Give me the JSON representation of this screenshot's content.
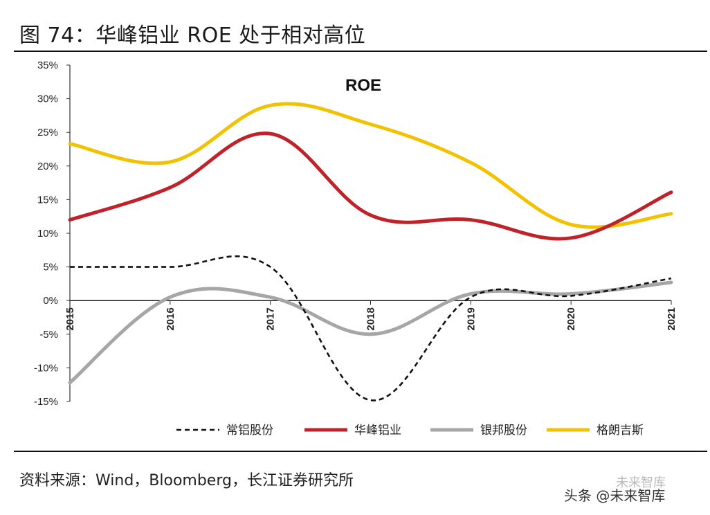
{
  "figure": {
    "title": "图 74：华峰铝业 ROE 处于相对高位",
    "source": "资料来源：Wind，Bloomberg，长江证券研究所",
    "watermark": "头条 @未来智库",
    "watermark_ghost": "未来智库"
  },
  "chart_data": {
    "type": "line",
    "title": "ROE",
    "xlabel": "",
    "ylabel": "",
    "categories": [
      "2015",
      "2016",
      "2017",
      "2018",
      "2019",
      "2020",
      "2021"
    ],
    "ylim": [
      -0.15,
      0.35
    ],
    "yticks": [
      {
        "value": 0.35,
        "label": "35%"
      },
      {
        "value": 0.3,
        "label": "30%"
      },
      {
        "value": 0.25,
        "label": "25%"
      },
      {
        "value": 0.2,
        "label": "20%"
      },
      {
        "value": 0.15,
        "label": "15%"
      },
      {
        "value": 0.1,
        "label": "10%"
      },
      {
        "value": 0.05,
        "label": "5%"
      },
      {
        "value": 0.0,
        "label": "0%"
      },
      {
        "value": -0.05,
        "label": "-5%"
      },
      {
        "value": -0.1,
        "label": "-10%"
      },
      {
        "value": -0.15,
        "label": "-15%"
      }
    ],
    "grid": false,
    "legend_position": "bottom",
    "series": [
      {
        "name": "常铝股份",
        "color": "#111111",
        "dash": true,
        "values": [
          0.05,
          0.05,
          0.05,
          -0.148,
          0.005,
          0.007,
          0.033
        ]
      },
      {
        "name": "华峰铝业",
        "color": "#c0222a",
        "dash": false,
        "values": [
          0.12,
          0.168,
          0.248,
          0.127,
          0.12,
          0.093,
          0.161
        ]
      },
      {
        "name": "银邦股份",
        "color": "#a6a6a6",
        "dash": false,
        "values": [
          -0.122,
          0.005,
          0.005,
          -0.05,
          0.01,
          0.01,
          0.027
        ]
      },
      {
        "name": "格朗吉斯",
        "color": "#f2c200",
        "dash": false,
        "values": [
          0.233,
          0.206,
          0.29,
          0.262,
          0.205,
          0.113,
          0.129
        ]
      }
    ]
  }
}
